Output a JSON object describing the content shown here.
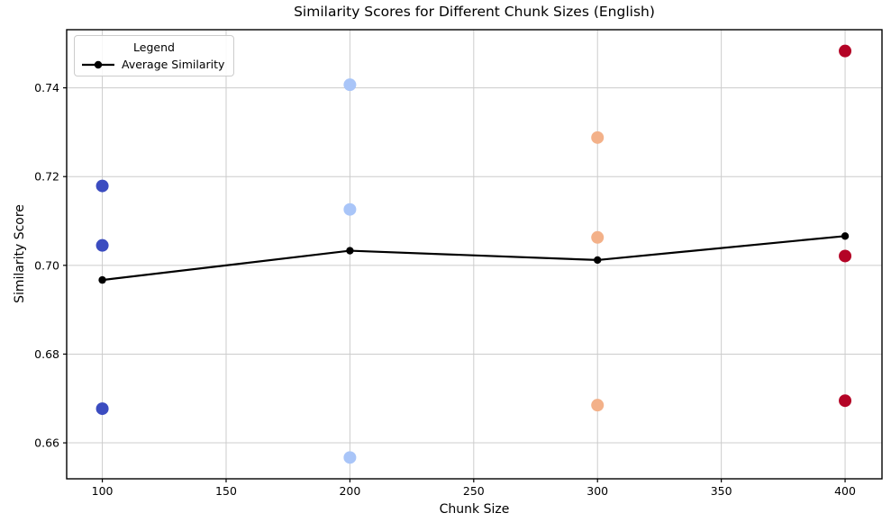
{
  "chart_data": {
    "type": "scatter",
    "title": "Similarity Scores for Different Chunk Sizes (English)",
    "xlabel": "Chunk Size",
    "ylabel": "Similarity Score",
    "xlim": [
      85.6,
      414.9
    ],
    "ylim": [
      0.6519,
      0.7531
    ],
    "x_ticks": [
      100,
      150,
      200,
      250,
      300,
      350,
      400
    ],
    "x_tick_labels": [
      "100",
      "150",
      "200",
      "250",
      "300",
      "350",
      "400"
    ],
    "y_ticks": [
      0.66,
      0.68,
      0.7,
      0.72,
      0.74
    ],
    "y_tick_labels": [
      "0.66",
      "0.68",
      "0.70",
      "0.72",
      "0.74"
    ],
    "grid": true,
    "grid_color": "#cccccc",
    "spine_color": "#000000",
    "background": "#ffffff",
    "legend": {
      "title": "Legend",
      "position": "upper-left",
      "entries": [
        {
          "label": "Average Similarity",
          "marker": "line-with-dot",
          "color": "#000000"
        }
      ]
    },
    "series": [
      {
        "chunk_size": 100,
        "color": "#3b4cc0",
        "y_values": [
          0.7179,
          0.7045,
          0.6677
        ]
      },
      {
        "chunk_size": 200,
        "color": "#a9c5f8",
        "y_values": [
          0.7407,
          0.7126,
          0.6567
        ]
      },
      {
        "chunk_size": 300,
        "color": "#f3b189",
        "y_values": [
          0.7288,
          0.7063,
          0.6685
        ]
      },
      {
        "chunk_size": 400,
        "color": "#b40426",
        "y_values": [
          0.7483,
          0.7021,
          0.6695
        ]
      }
    ],
    "average_line": {
      "label": "Average Similarity",
      "color": "#000000",
      "x": [
        100,
        200,
        300,
        400
      ],
      "y": [
        0.6967,
        0.7033,
        0.7012,
        0.7066
      ]
    }
  }
}
